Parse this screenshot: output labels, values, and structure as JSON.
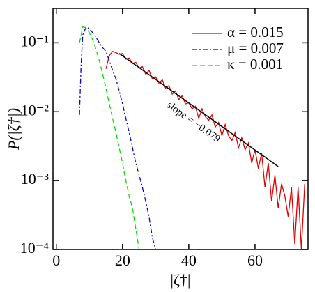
{
  "chart_data": {
    "type": "line",
    "xlabel": "|ζ†|",
    "ylabel": "P(|ζ†|)",
    "xlim": [
      -1,
      76
    ],
    "xticks": [
      0,
      20,
      40,
      60
    ],
    "ylim": [
      0.0001,
      0.316
    ],
    "log_y": true,
    "yticks": [
      {
        "value": 0.0001,
        "label": "10⁻⁴"
      },
      {
        "value": 0.001,
        "label": "10⁻³"
      },
      {
        "value": 0.01,
        "label": "10⁻²"
      },
      {
        "value": 0.1,
        "label": "10⁻¹"
      }
    ],
    "legend": "upper right",
    "series": [
      {
        "name": "α = 0.015",
        "color": "#e00000",
        "dash": "solid",
        "x": [
          15,
          16,
          17,
          18,
          19,
          20,
          21,
          22,
          23,
          24,
          25,
          26,
          27,
          28,
          29,
          30,
          31,
          32,
          33,
          34,
          35,
          36,
          37,
          38,
          39,
          40,
          41,
          42,
          43,
          44,
          45,
          46,
          47,
          48,
          49,
          50,
          51,
          52,
          53,
          54,
          55,
          56,
          57,
          58,
          59,
          60,
          61,
          62,
          63,
          64,
          65,
          66,
          67,
          68,
          69,
          70,
          71,
          72,
          73,
          74,
          75
        ],
        "values": [
          0.042,
          0.065,
          0.075,
          0.072,
          0.068,
          0.07,
          0.058,
          0.06,
          0.05,
          0.052,
          0.043,
          0.045,
          0.035,
          0.04,
          0.03,
          0.032,
          0.026,
          0.029,
          0.022,
          0.024,
          0.018,
          0.02,
          0.015,
          0.017,
          0.013,
          0.0135,
          0.011,
          0.012,
          0.008,
          0.011,
          0.0085,
          0.0075,
          0.009,
          0.006,
          0.007,
          0.0045,
          0.0065,
          0.0045,
          0.0038,
          0.005,
          0.003,
          0.0042,
          0.0028,
          0.0035,
          0.0018,
          0.0028,
          0.0015,
          0.0025,
          0.0008,
          0.0018,
          0.0005,
          0.0012,
          0.0004,
          0.0009,
          0.0006,
          0.0003,
          0.0008,
          0.00012,
          0.0008,
          0.0001,
          0.0009
        ]
      },
      {
        "name": "μ = 0.007",
        "color": "#0000e0",
        "dash": "dashdot",
        "x": [
          7,
          7.5,
          8,
          9,
          10,
          11,
          12,
          13,
          14,
          15,
          16,
          17,
          18,
          19,
          20,
          21,
          22,
          23,
          24,
          25,
          26,
          27,
          28,
          29,
          30
        ],
        "values": [
          0.009,
          0.05,
          0.13,
          0.17,
          0.16,
          0.14,
          0.12,
          0.1,
          0.085,
          0.075,
          0.055,
          0.04,
          0.03,
          0.02,
          0.013,
          0.008,
          0.005,
          0.003,
          0.0018,
          0.0012,
          0.0008,
          0.0005,
          0.0003,
          0.00015,
          0.0001
        ]
      },
      {
        "name": "κ = 0.001",
        "color": "#00e000",
        "dash": "dashed",
        "x": [
          7,
          8,
          9,
          10,
          11,
          12,
          13,
          14,
          15,
          16,
          17,
          18,
          19,
          20,
          21,
          22,
          23,
          24,
          25
        ],
        "values": [
          0.1,
          0.17,
          0.165,
          0.14,
          0.11,
          0.08,
          0.055,
          0.035,
          0.022,
          0.013,
          0.008,
          0.005,
          0.003,
          0.0018,
          0.001,
          0.0006,
          0.0004,
          0.0002,
          0.0001
        ]
      }
    ],
    "fit": {
      "x": [
        19,
        67
      ],
      "values": [
        0.07,
        0.0016
      ],
      "color": "#000000",
      "label": "slope = −0.079"
    }
  }
}
